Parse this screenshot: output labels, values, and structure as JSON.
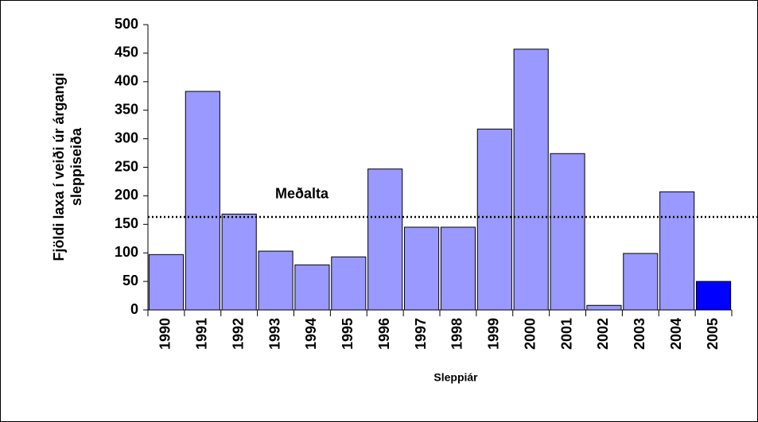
{
  "chart_data": {
    "type": "bar",
    "y_label": [
      "Fjöldi laxa í veiði úr árgangi",
      "sleppiseiða"
    ],
    "x_label": "Sleppiár",
    "categories": [
      "1990",
      "1991",
      "1992",
      "1993",
      "1994",
      "1995",
      "1996",
      "1997",
      "1998",
      "1999",
      "2000",
      "2001",
      "2002",
      "2003",
      "2004",
      "2005"
    ],
    "values": [
      97,
      383,
      168,
      103,
      79,
      93,
      247,
      145,
      145,
      317,
      457,
      274,
      8,
      99,
      207,
      50
    ],
    "colors": [
      "#9999ff",
      "#9999ff",
      "#9999ff",
      "#9999ff",
      "#9999ff",
      "#9999ff",
      "#9999ff",
      "#9999ff",
      "#9999ff",
      "#9999ff",
      "#9999ff",
      "#9999ff",
      "#9999ff",
      "#9999ff",
      "#9999ff",
      "#0000ff"
    ],
    "ylim": [
      0,
      500
    ],
    "yticks": [
      0,
      50,
      100,
      150,
      200,
      250,
      300,
      350,
      400,
      450,
      500
    ],
    "grid": false,
    "reference_line": {
      "label": "Meðalta",
      "value": 163
    }
  }
}
